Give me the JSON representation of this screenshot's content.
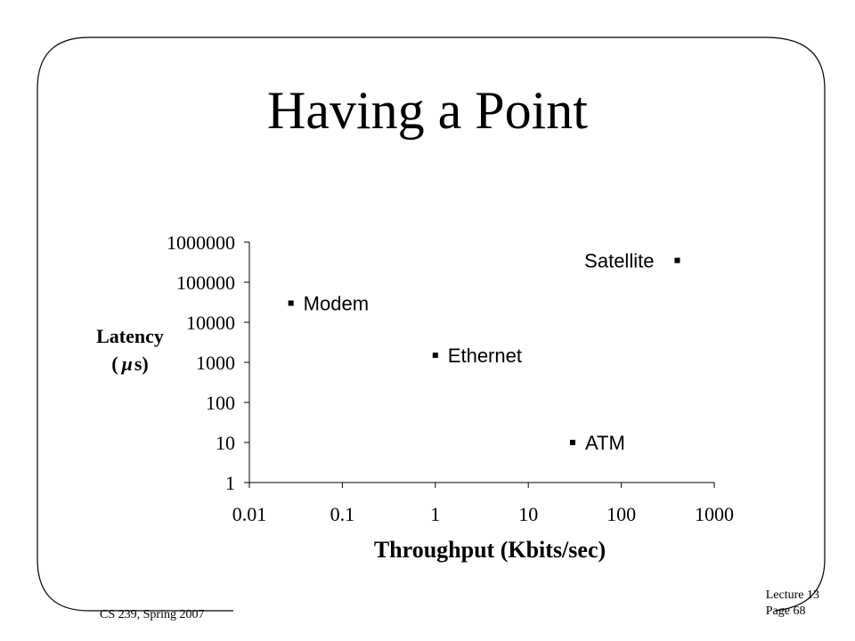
{
  "slide": {
    "title": "Having a Point",
    "footer_left": "CS 239, Spring 2007",
    "footer_right_line1": "Lecture 13",
    "footer_right_line2": "Page 68"
  },
  "chart_data": {
    "type": "scatter",
    "xscale": "log",
    "yscale": "log",
    "xlim": [
      0.01,
      1000
    ],
    "ylim": [
      1,
      1000000
    ],
    "xticks": [
      "0.01",
      "0.1",
      "1",
      "10",
      "100",
      "1000"
    ],
    "yticks": [
      "1",
      "10",
      "100",
      "1000",
      "10000",
      "100000",
      "1000000"
    ],
    "xlabel": "Throughput (Kbits/sec)",
    "ylabel_line1": "Latency",
    "ylabel_line2_left": "(",
    "ylabel_line2_mu": "μ",
    "ylabel_line2_right": "s)",
    "grid": false,
    "points": [
      {
        "label": "Modem",
        "x": 0.028,
        "y": 30000,
        "label_side": "right"
      },
      {
        "label": "Ethernet",
        "x": 1.0,
        "y": 1500,
        "label_side": "right"
      },
      {
        "label": "ATM",
        "x": 30,
        "y": 10,
        "label_side": "right"
      },
      {
        "label": "Satellite",
        "x": 400,
        "y": 350000,
        "label_side": "left"
      }
    ]
  }
}
